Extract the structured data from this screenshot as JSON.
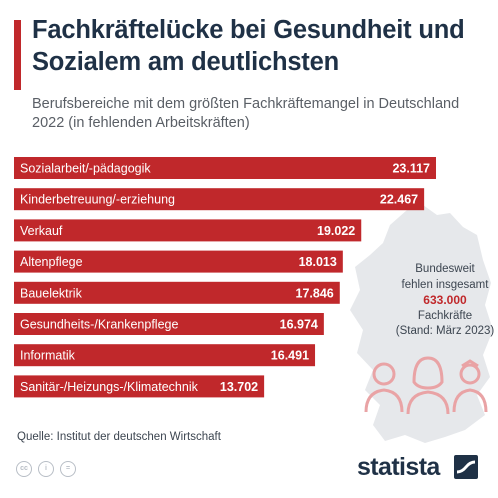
{
  "header": {
    "title": "Fachkräftelücke bei Gesundheit und Sozialem am deutlichsten",
    "subtitle": "Berufsbereiche mit dem größten Fachkräftemangel in Deutschland 2022 (in fehlenden Arbeitskräften)"
  },
  "summary": {
    "line1": "Bundesweit",
    "line2": "fehlen insgesamt",
    "value": "633.000",
    "line3": "Fachkräfte",
    "line4": "(Stand: März 2023)"
  },
  "footer": {
    "source": "Quelle: Institut der deutschen Wirtschaft",
    "license_icons": [
      "creative-commons-icon",
      "attribution-icon",
      "no-derivatives-icon"
    ],
    "logo_text": "statista"
  },
  "colors": {
    "bar": "#c0282b",
    "title": "#1f3146",
    "accent": "#c0282b",
    "map": "#e6e8eb",
    "people": "#e9a3a5"
  },
  "chart_data": {
    "type": "bar",
    "orientation": "horizontal",
    "categories": [
      "Sozialarbeit/-pädagogik",
      "Kinderbetreuung/-erziehung",
      "Verkauf",
      "Altenpflege",
      "Bauelektrik",
      "Gesundheits-/Krankenpflege",
      "Informatik",
      "Sanitär-/Heizungs-/Klimatechnik"
    ],
    "values": [
      23117,
      22467,
      19022,
      18013,
      17846,
      16974,
      16491,
      13702
    ],
    "value_labels": [
      "23.117",
      "22.467",
      "19.022",
      "18.013",
      "17.846",
      "16.974",
      "16.491",
      "13.702"
    ],
    "title": "Fachkräftelücke bei Gesundheit und Sozialem am deutlichsten",
    "subtitle": "Berufsbereiche mit dem größten Fachkräftemangel in Deutschland 2022 (in fehlenden Arbeitskräften)",
    "xlabel": "",
    "ylabel": "",
    "xlim": [
      0,
      23117
    ],
    "grid": false,
    "legend": "none"
  }
}
